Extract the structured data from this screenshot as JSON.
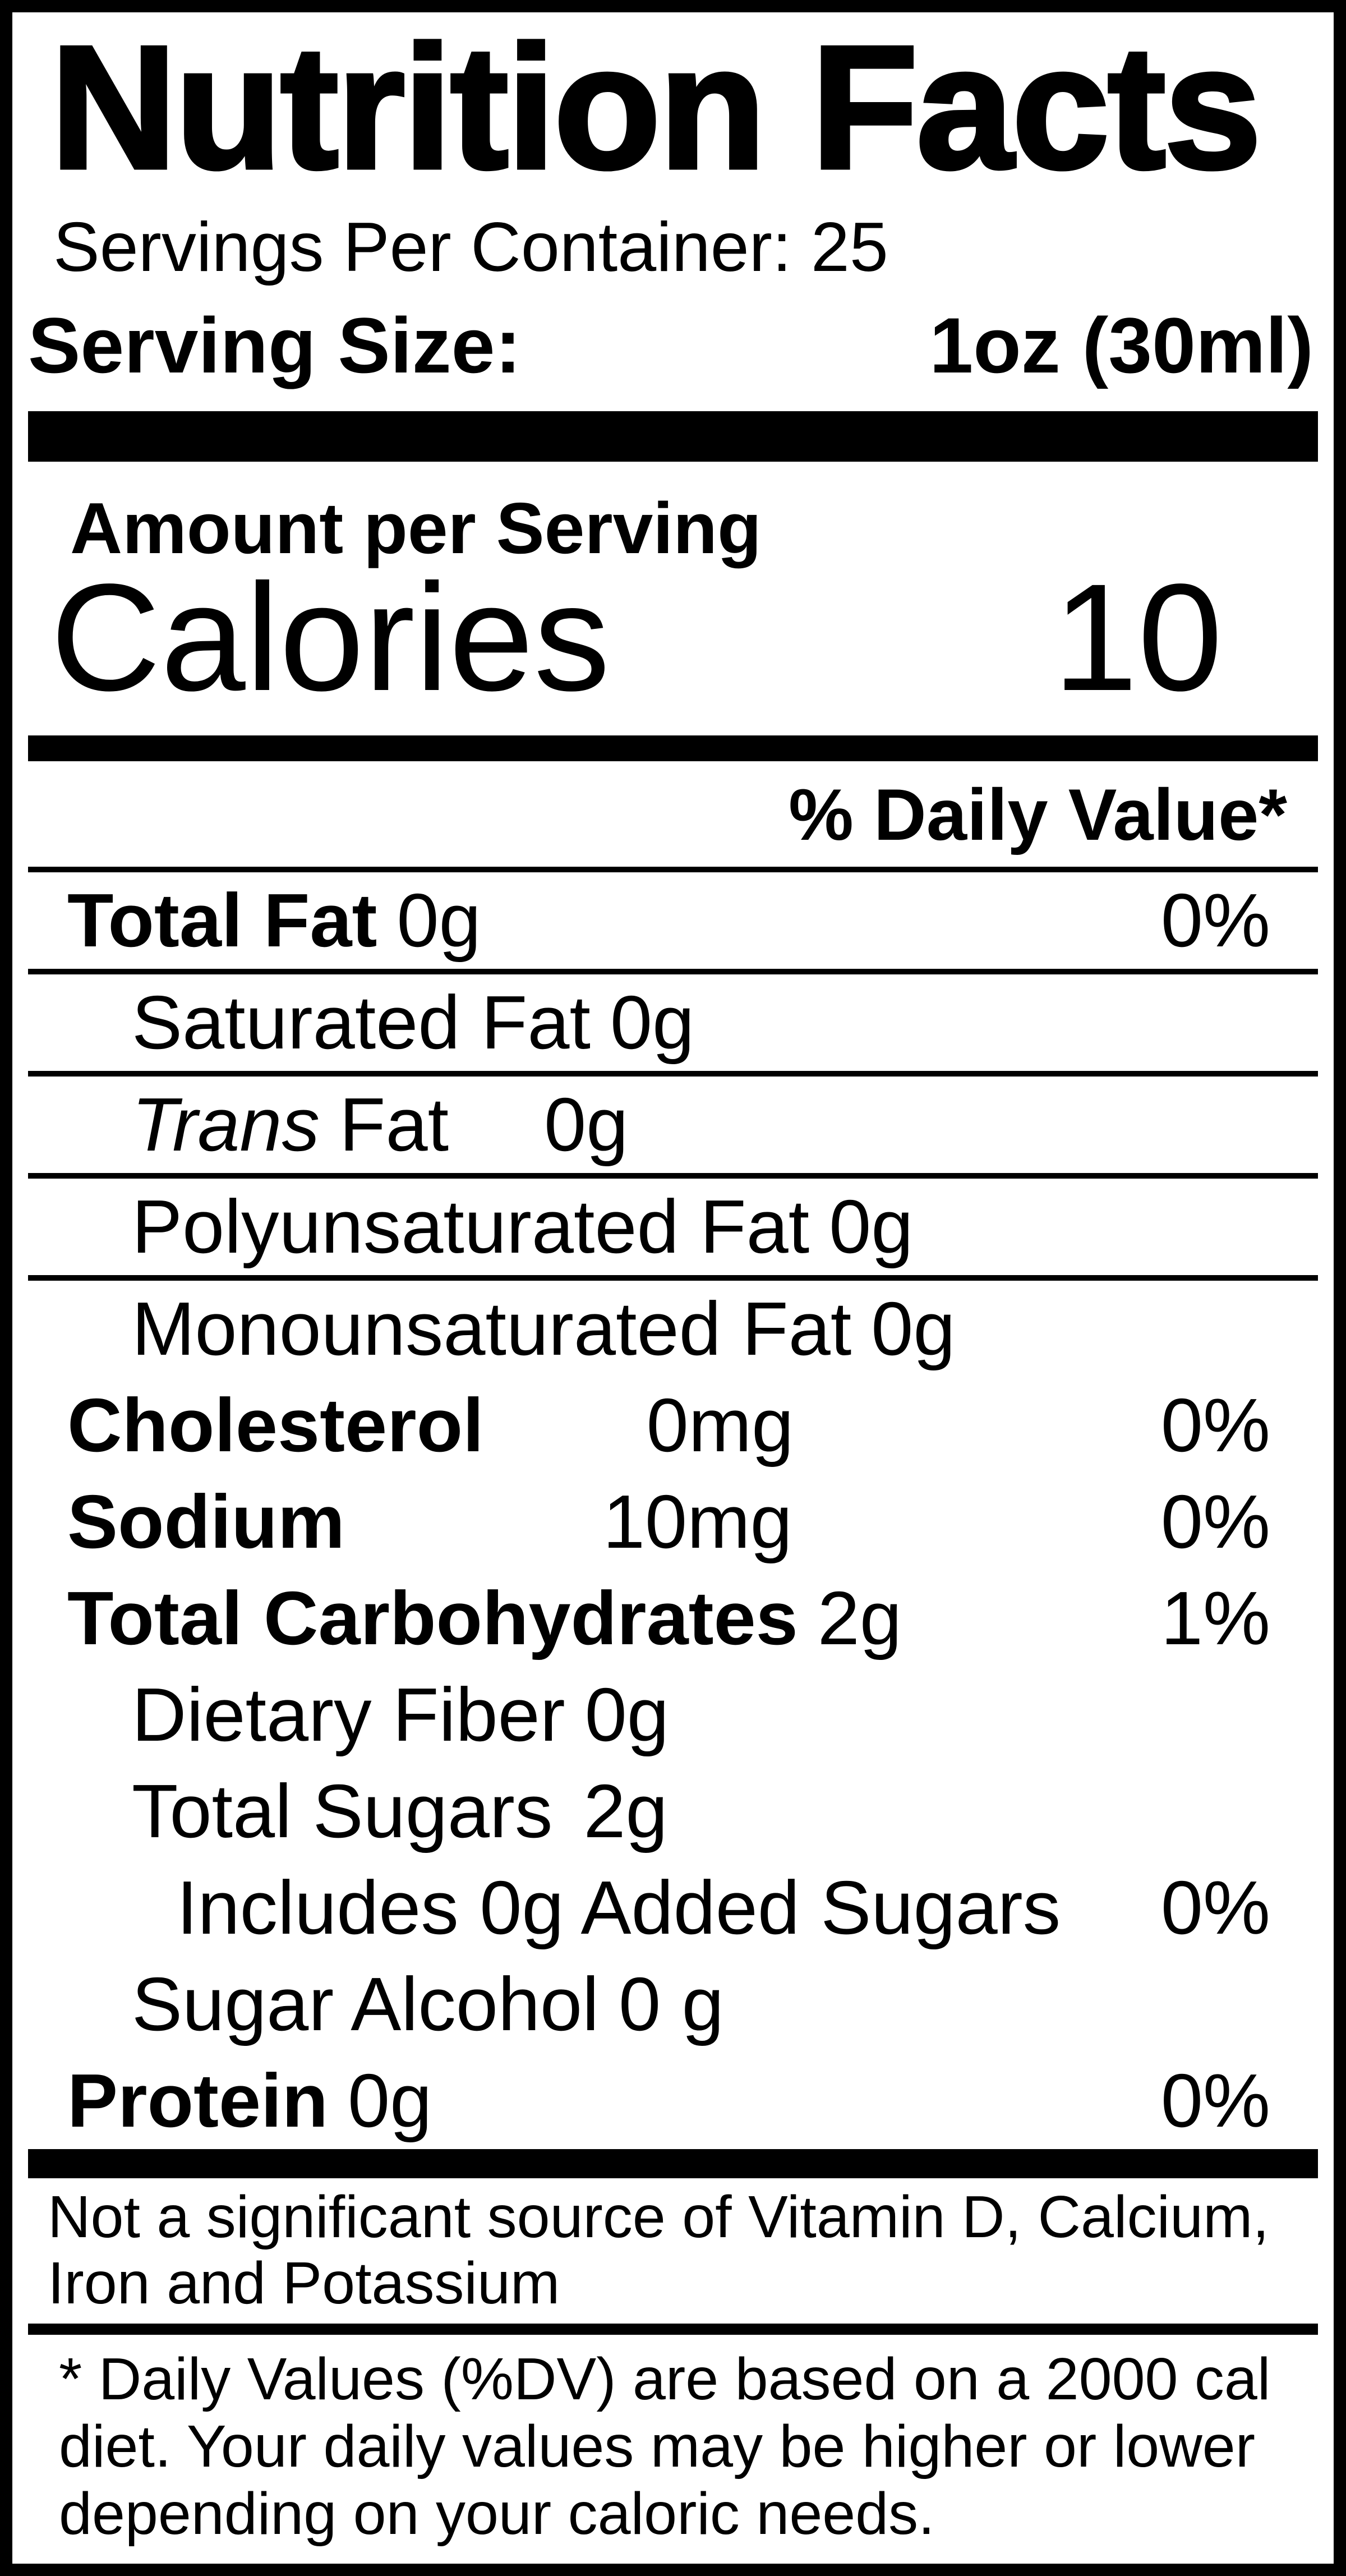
{
  "title": "Nutrition Facts",
  "servings_line": "Servings Per Container: 25",
  "serving_size": {
    "label": "Serving Size:",
    "value": "1oz (30ml)"
  },
  "amount_per_serving": "Amount per Serving",
  "calories": {
    "label": "Calories",
    "value": "10"
  },
  "daily_value_header": "% Daily Value*",
  "rows": [
    {
      "name": "Total Fat",
      "value": "0g",
      "dv": "0%"
    },
    {
      "name": "Saturated Fat",
      "value": "0g",
      "dv": ""
    },
    {
      "name_italic": "Trans",
      "name": "Fat",
      "value": "0g",
      "dv": ""
    },
    {
      "name": "Polyunsaturated Fat",
      "value": "0g",
      "dv": ""
    },
    {
      "name": "Monounsaturated Fat",
      "value": "0g",
      "dv": ""
    },
    {
      "name": "Cholesterol",
      "value": "0mg",
      "dv": "0%"
    },
    {
      "name": "Sodium",
      "value": "10mg",
      "dv": "0%"
    },
    {
      "name": "Total Carbohydrates",
      "value": "2g",
      "dv": "1%"
    },
    {
      "name": "Dietary Fiber",
      "value": "0g",
      "dv": ""
    },
    {
      "name": "Total Sugars",
      "value": "2g",
      "dv": ""
    },
    {
      "name": "Includes 0g Added Sugars",
      "value": "",
      "dv": "0%"
    },
    {
      "name": "Sugar Alcohol",
      "value": "0 g",
      "dv": ""
    },
    {
      "name": "Protein",
      "value": "0g",
      "dv": "0%"
    }
  ],
  "note": {
    "lines": [
      "Not a significant source of Vitamin D, Calcium,",
      "Iron and Potassium"
    ]
  },
  "footnote": {
    "lines": [
      "* Daily Values (%DV) are based on a 2000 cal",
      "diet. Your daily values may be higher or lower",
      "depending on your caloric needs."
    ]
  },
  "colors": {
    "ink": "#000000",
    "paper": "#ffffff"
  }
}
